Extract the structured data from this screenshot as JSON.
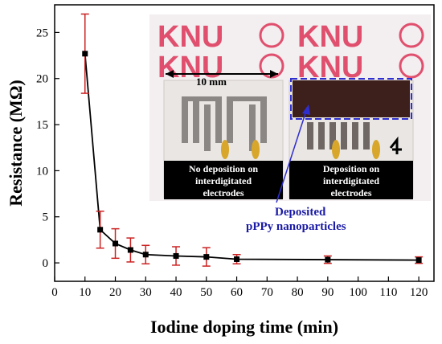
{
  "chart_data": {
    "type": "line",
    "xlabel": "Iodine doping time (min)",
    "ylabel": "Resistance (MΩ)",
    "xlim": [
      0,
      125
    ],
    "ylim": [
      -2,
      28
    ],
    "xticks": [
      0,
      10,
      20,
      30,
      40,
      50,
      60,
      70,
      80,
      90,
      100,
      110,
      120
    ],
    "yticks": [
      0,
      5,
      10,
      15,
      20,
      25
    ],
    "grid": false,
    "series": [
      {
        "x": [
          10,
          15,
          20,
          25,
          30,
          40,
          50,
          60,
          90,
          120
        ],
        "y": [
          22.7,
          3.6,
          2.1,
          1.4,
          0.9,
          0.75,
          0.65,
          0.4,
          0.35,
          0.3
        ],
        "error": [
          4.3,
          2.0,
          1.6,
          1.3,
          1.0,
          1.0,
          1.0,
          0.5,
          0.4,
          0.35
        ],
        "line_color": "#000000",
        "marker_color": "#000000",
        "error_color": "#cc2222"
      }
    ],
    "inset": {
      "scale_label": "10 mm",
      "logo_text": "KNU",
      "left_caption": [
        "No deposition on",
        "interdigitated",
        "electrodes"
      ],
      "right_caption": [
        "Deposition on",
        "interdigitated",
        "electrodes"
      ]
    },
    "annotation": [
      "Deposited",
      "pPPy nanoparticles"
    ]
  }
}
